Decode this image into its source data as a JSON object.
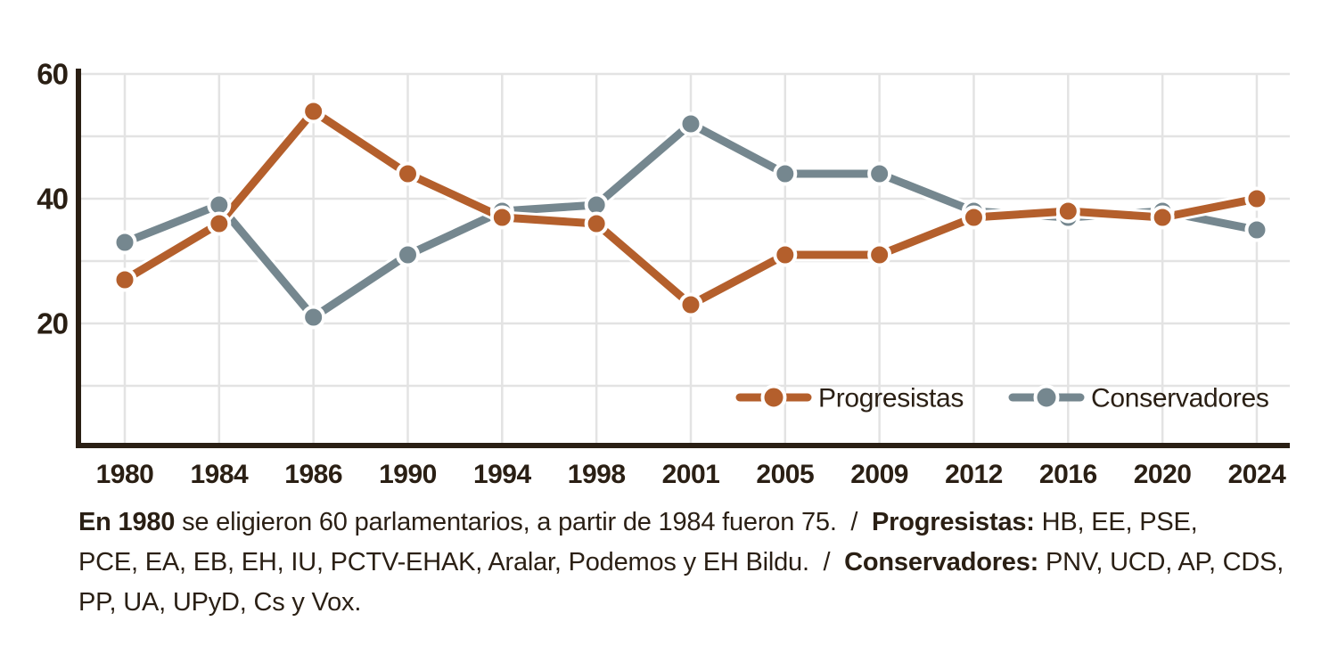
{
  "chart_data": {
    "type": "line",
    "categories": [
      "1980",
      "1984",
      "1986",
      "1990",
      "1994",
      "1998",
      "2001",
      "2005",
      "2009",
      "2012",
      "2016",
      "2020",
      "2024"
    ],
    "series": [
      {
        "name": "Progresistas",
        "color": "#b45f2c",
        "values": [
          27,
          36,
          54,
          44,
          37,
          36,
          23,
          31,
          31,
          37,
          38,
          37,
          40
        ]
      },
      {
        "name": "Conservadores",
        "color": "#75878f",
        "values": [
          33,
          39,
          21,
          31,
          38,
          39,
          52,
          44,
          44,
          38,
          37,
          38,
          35
        ]
      }
    ],
    "ylim": [
      0,
      60
    ],
    "yticks_labeled": [
      "20",
      "40",
      "60"
    ],
    "gridlines_y": [
      10,
      20,
      30,
      40,
      50,
      60
    ],
    "grid": true,
    "legend_position": "inside-bottom-right",
    "xlabel": "",
    "ylabel": ""
  },
  "footnote": {
    "lines": [
      [
        {
          "text": "En 1980",
          "bold": true
        },
        {
          "text": " se eligieron 60 parlamentarios, a partir de 1984 fueron 75.  /  ",
          "bold": false
        },
        {
          "text": "Progresistas:",
          "bold": true
        },
        {
          "text": " HB, EE, PSE,",
          "bold": false
        }
      ],
      [
        {
          "text": "PCE, EA, EB, EH, IU, PCTV-EHAK, Aralar, Podemos y EH Bildu.  /  ",
          "bold": false
        },
        {
          "text": "Conservadores:",
          "bold": true
        },
        {
          "text": " PNV, UCD, AP, CDS,",
          "bold": false
        }
      ],
      [
        {
          "text": "PP, UA, UPyD, Cs y Vox.",
          "bold": false
        }
      ]
    ]
  }
}
